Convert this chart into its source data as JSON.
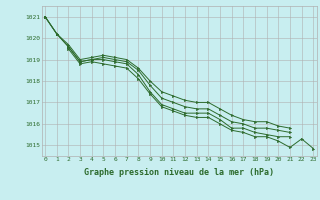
{
  "background_color": "#c8eef0",
  "grid_color": "#b0b0b0",
  "line_color": "#2d6b2d",
  "marker_color": "#2d6b2d",
  "xlabel": "Graphe pression niveau de la mer (hPa)",
  "xlabel_fontsize": 6.0,
  "ylabel_ticks": [
    1015,
    1016,
    1017,
    1018,
    1019,
    1020,
    1021
  ],
  "xticks": [
    0,
    1,
    2,
    3,
    4,
    5,
    6,
    7,
    8,
    9,
    10,
    11,
    12,
    13,
    14,
    15,
    16,
    17,
    18,
    19,
    20,
    21,
    22,
    23
  ],
  "ylim": [
    1014.5,
    1021.5
  ],
  "xlim": [
    -0.3,
    23.3
  ],
  "series": [
    {
      "xs": [
        0,
        1,
        2,
        3,
        4,
        5,
        6,
        7,
        8,
        9,
        10,
        11,
        12,
        13,
        14,
        15,
        16,
        17,
        18,
        19,
        20,
        21
      ],
      "ys": [
        1021.0,
        1020.2,
        1019.6,
        1018.9,
        1019.0,
        1019.0,
        1018.9,
        1018.8,
        1018.3,
        1017.5,
        1016.9,
        1016.7,
        1016.5,
        1016.5,
        1016.5,
        1016.2,
        1015.8,
        1015.8,
        1015.6,
        1015.5,
        1015.4,
        1015.4
      ]
    },
    {
      "xs": [
        0,
        1,
        2,
        3,
        4,
        5,
        6,
        7,
        8,
        9,
        10,
        11,
        12,
        13,
        14,
        15,
        16,
        17,
        18,
        19,
        20,
        21
      ],
      "ys": [
        1021.0,
        1020.2,
        1019.6,
        1018.9,
        1019.0,
        1019.1,
        1019.0,
        1018.9,
        1018.5,
        1017.8,
        1017.2,
        1017.0,
        1016.8,
        1016.7,
        1016.7,
        1016.4,
        1016.1,
        1016.0,
        1015.8,
        1015.8,
        1015.7,
        1015.6
      ]
    },
    {
      "xs": [
        0,
        1,
        2,
        3,
        4,
        5,
        6,
        7,
        8,
        9,
        10,
        11,
        12,
        13,
        14,
        15,
        16,
        17,
        18,
        19,
        20,
        21
      ],
      "ys": [
        1021.0,
        1020.2,
        1019.7,
        1019.0,
        1019.1,
        1019.2,
        1019.1,
        1019.0,
        1018.6,
        1018.0,
        1017.5,
        1017.3,
        1017.1,
        1017.0,
        1017.0,
        1016.7,
        1016.4,
        1016.2,
        1016.1,
        1016.1,
        1015.9,
        1015.8
      ]
    },
    {
      "xs": [
        2,
        3,
        4,
        5,
        6,
        7,
        8,
        9,
        10,
        11,
        12,
        13,
        14,
        15,
        16,
        17,
        18,
        19,
        20,
        21,
        22,
        23
      ],
      "ys": [
        1019.5,
        1018.8,
        1018.9,
        1018.8,
        1018.7,
        1018.6,
        1018.1,
        1017.4,
        1016.8,
        1016.6,
        1016.4,
        1016.3,
        1016.3,
        1016.0,
        1015.7,
        1015.6,
        1015.4,
        1015.4,
        1015.2,
        1014.9,
        1015.3,
        1014.85
      ]
    }
  ]
}
